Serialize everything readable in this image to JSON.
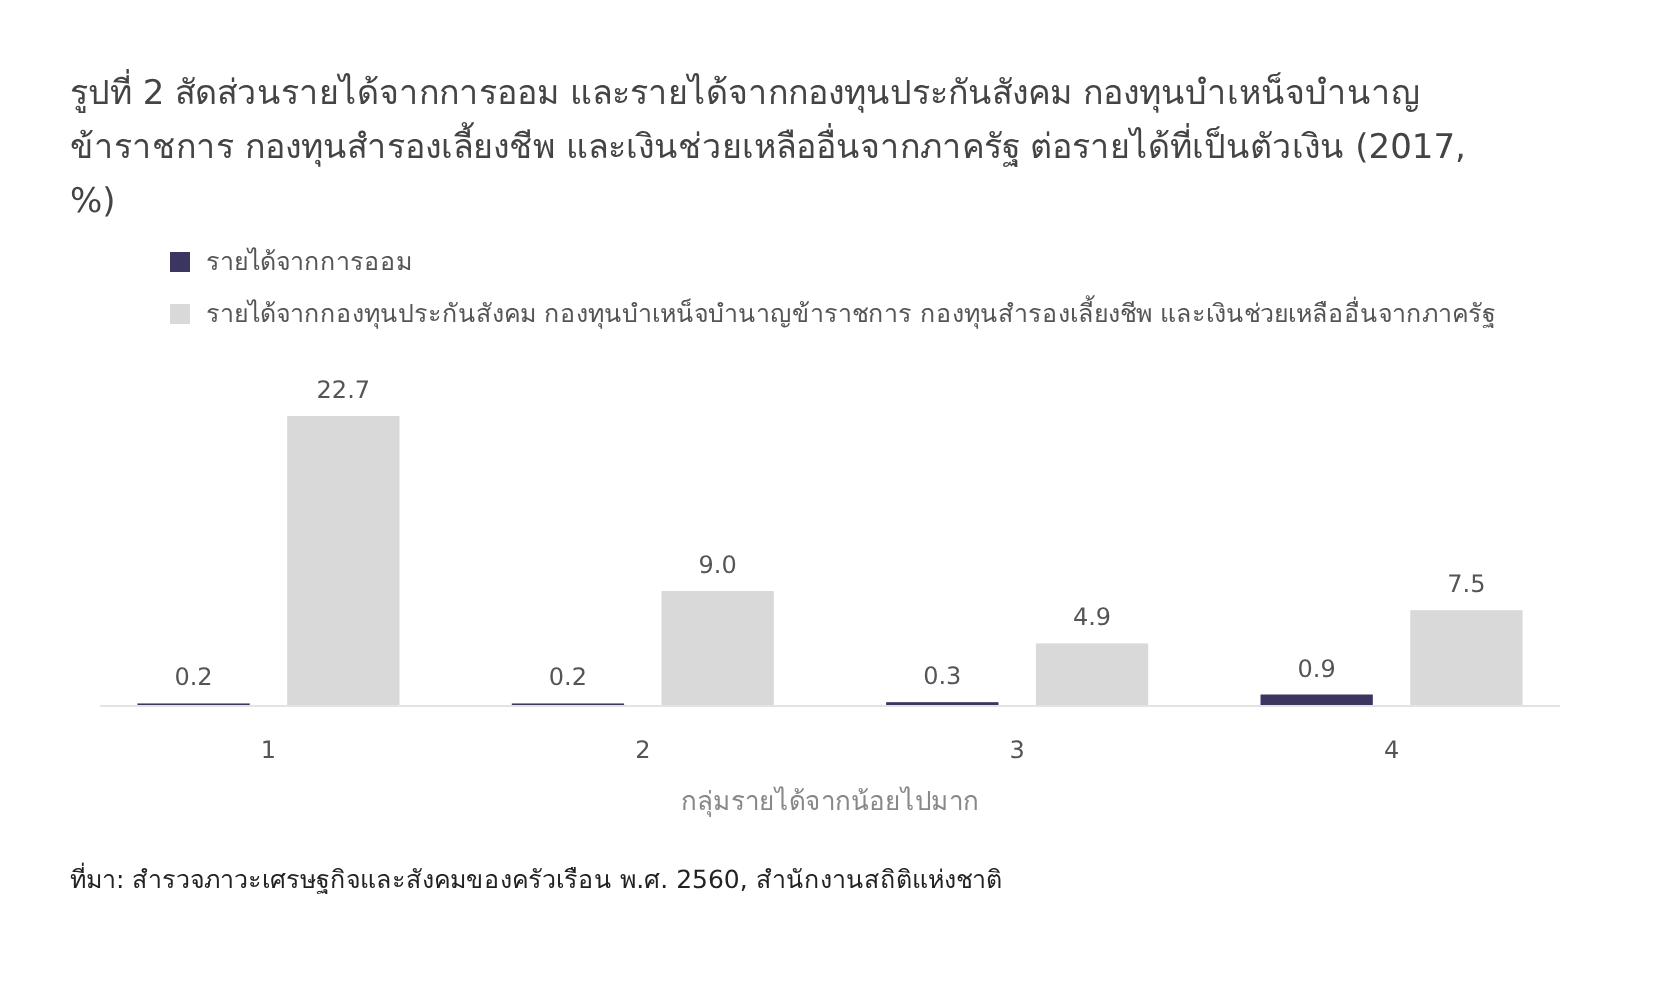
{
  "chart_data": {
    "type": "bar",
    "title": "รูปที่ 2 สัดส่วนรายได้จากการออม และรายได้จากกองทุนประกันสังคม กองทุนบำเหน็จบำนาญข้าราชการ กองทุนสำรองเลี้ยงชีพ และเงินช่วยเหลืออื่นจากภาครัฐ ต่อรายได้ที่เป็นตัวเงิน (2017, %)",
    "xlabel": "กลุ่มรายได้จากน้อยไปมาก",
    "categories": [
      "1",
      "2",
      "3",
      "4"
    ],
    "legend": "top left",
    "series": [
      {
        "name": "รายได้จากการออม",
        "color": "#3b3561",
        "values": [
          0.2,
          0.2,
          0.3,
          0.9
        ],
        "value_labels": [
          "0.2",
          "0.2",
          "0.3",
          "0.9"
        ]
      },
      {
        "name": "รายได้จากกองทุนประกันสังคม กองทุนบำเหน็จบำนาญข้าราชการ กองทุนสำรองเลี้ยงชีพ และเงินช่วยเหลืออื่นจากภาครัฐ",
        "color": "#d9d9d9",
        "values": [
          22.7,
          9.0,
          4.9,
          7.5
        ],
        "value_labels": [
          "22.7",
          "9.0",
          "4.9",
          "7.5"
        ]
      }
    ],
    "annotations": [
      "ที่มา: สำรวจภาวะเศรษฐกิจและสังคมของครัวเรือน พ.ศ. 2560, สำนักงานสถิติแห่งชาติ"
    ]
  }
}
